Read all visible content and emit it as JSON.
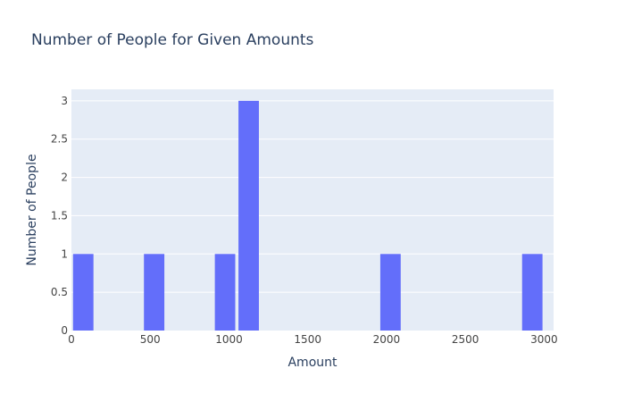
{
  "chart_data": {
    "type": "bar",
    "title": "Number of People for Given Amounts",
    "xlabel": "Amount",
    "ylabel": "Number of People",
    "bin_size": 150,
    "bins": [
      {
        "start": 0,
        "end": 150,
        "count": 1
      },
      {
        "start": 450,
        "end": 600,
        "count": 1
      },
      {
        "start": 900,
        "end": 1050,
        "count": 1
      },
      {
        "start": 1050,
        "end": 1200,
        "count": 3
      },
      {
        "start": 1950,
        "end": 2100,
        "count": 1
      },
      {
        "start": 2850,
        "end": 3000,
        "count": 1
      }
    ],
    "xlim": [
      0,
      3060
    ],
    "ylim": [
      0,
      3.15
    ],
    "x_ticks": [
      {
        "value": 0,
        "label": "0"
      },
      {
        "value": 500,
        "label": "500"
      },
      {
        "value": 1000,
        "label": "1000"
      },
      {
        "value": 1500,
        "label": "1500"
      },
      {
        "value": 2000,
        "label": "2000"
      },
      {
        "value": 2500,
        "label": "2500"
      },
      {
        "value": 3000,
        "label": "3000"
      }
    ],
    "y_ticks": [
      {
        "value": 0,
        "label": "0"
      },
      {
        "value": 0.5,
        "label": "0.5"
      },
      {
        "value": 1,
        "label": "1"
      },
      {
        "value": 1.5,
        "label": "1.5"
      },
      {
        "value": 2,
        "label": "2"
      },
      {
        "value": 2.5,
        "label": "2.5"
      },
      {
        "value": 3,
        "label": "3"
      }
    ],
    "grid": true,
    "colors": {
      "bar": "#636efa",
      "plot_background": "#e5ecf6",
      "grid": "#ffffff",
      "text": "#2a3f5f",
      "tick_text": "#444444"
    }
  }
}
